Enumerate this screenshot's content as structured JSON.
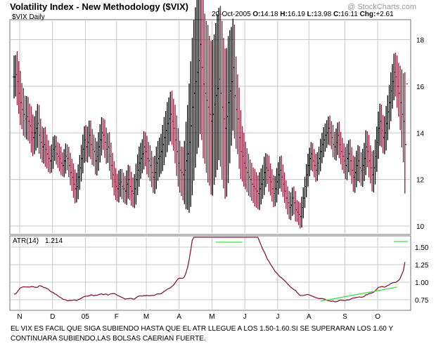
{
  "header": {
    "title": "Volatility Index - New Methodology ($VIX)",
    "watermark": "@ StockCharts.com",
    "date": "20-Oct-2005",
    "open_label": "O:",
    "open": "14.18",
    "high_label": "H:",
    "high": "16.19",
    "low_label": "L:",
    "low": "13.98",
    "close_label": "C:",
    "close": "16.11",
    "change_label": "Chg:",
    "change": "+2.61"
  },
  "caption": "EL VIX ES FACIL QUE SIGA SUBIENDO HASTA QUE EL ATR LLEGUE A LOS 1.50-1.60.SI SE SUPERARAN LOS 1.60 Y CONTINUARA SUBIENDO,LAS BOLSAS CAERIAN FUERTE.",
  "colors": {
    "up": "#000000",
    "down": "#8b1a3a",
    "trendline": "#44dd44",
    "grid": "#c8c8c8"
  },
  "chart_data": [
    {
      "type": "ohlc",
      "label": "$VIX Daily",
      "ylim": [
        9.7,
        18.8
      ],
      "yticks": [
        10,
        12,
        14,
        16,
        18
      ],
      "months": [
        "N",
        "D",
        "05",
        "F",
        "M",
        "A",
        "M",
        "J",
        "J",
        "A",
        "S",
        "O"
      ],
      "month_start_index": [
        0,
        21,
        42,
        62,
        81,
        102,
        123,
        144,
        165,
        185,
        208,
        229
      ],
      "close": [
        16.4,
        16.5,
        16.2,
        15.7,
        15.3,
        15.0,
        14.8,
        14.6,
        14.7,
        14.5,
        14.3,
        14.0,
        13.8,
        14.0,
        14.2,
        14.4,
        13.9,
        13.6,
        13.4,
        13.5,
        13.3,
        13.1,
        12.9,
        12.8,
        13.0,
        13.3,
        13.4,
        13.1,
        13.0,
        12.9,
        12.7,
        12.6,
        12.8,
        13.0,
        12.9,
        12.6,
        12.3,
        12.1,
        11.8,
        11.6,
        11.7,
        12.1,
        12.5,
        12.9,
        13.3,
        13.7,
        13.4,
        13.6,
        13.9,
        13.5,
        13.3,
        13.2,
        12.8,
        13.0,
        13.4,
        13.7,
        14.0,
        13.9,
        13.6,
        13.3,
        13.4,
        13.0,
        12.6,
        12.2,
        11.9,
        11.7,
        11.6,
        11.8,
        11.9,
        11.7,
        11.6,
        11.5,
        11.8,
        12.0,
        11.7,
        11.5,
        11.4,
        11.6,
        12.0,
        12.4,
        12.7,
        12.9,
        13.1,
        13.4,
        13.2,
        12.9,
        12.8,
        12.6,
        12.3,
        12.1,
        12.3,
        12.7,
        12.9,
        13.0,
        13.2,
        13.5,
        13.8,
        14.1,
        14.4,
        14.6,
        14.8,
        14.5,
        14.2,
        13.7,
        13.2,
        12.7,
        12.4,
        12.3,
        12.2,
        12.4,
        12.8,
        13.1,
        13.6,
        14.3,
        15.1,
        15.7,
        16.2,
        16.6,
        17.1,
        17.8,
        16.8,
        16.1,
        15.7,
        15.4,
        15.1,
        14.8,
        14.5,
        14.8,
        15.2,
        15.6,
        15.9,
        16.3,
        15.7,
        15.1,
        14.6,
        14.2,
        14.7,
        15.3,
        15.8,
        16.2,
        16.8,
        15.6,
        15.0,
        14.6,
        13.8,
        13.2,
        13.0,
        12.7,
        12.5,
        12.3,
        12.1,
        12.0,
        11.8,
        11.7,
        11.6,
        11.5,
        11.4,
        11.6,
        11.8,
        12.0,
        12.3,
        12.5,
        12.4,
        12.1,
        11.9,
        11.6,
        11.4,
        11.6,
        11.9,
        12.2,
        12.4,
        12.1,
        11.8,
        11.5,
        11.2,
        11.0,
        10.8,
        10.9,
        11.2,
        11.0,
        10.7,
        10.6,
        10.5,
        10.4,
        10.8,
        11.2,
        11.7,
        12.2,
        12.6,
        12.9,
        13.1,
        12.8,
        12.6,
        12.4,
        12.7,
        12.9,
        13.2,
        13.5,
        13.7,
        13.9,
        14.0,
        14.2,
        14.0,
        13.8,
        13.5,
        13.4,
        13.6,
        13.9,
        13.5,
        13.2,
        13.0,
        12.8,
        12.6,
        12.9,
        13.1,
        12.8,
        12.4,
        12.1,
        12.3,
        12.6,
        12.8,
        12.5,
        12.4,
        12.6,
        12.9,
        13.4,
        13.2,
        12.8,
        12.5,
        12.2,
        12.5,
        13.0,
        13.6,
        14.2,
        14.5,
        14.1,
        13.8,
        14.0,
        14.4,
        14.9,
        15.3,
        15.8,
        16.2,
        16.6,
        16.4,
        16.0,
        15.7,
        15.3,
        14.8,
        14.5,
        13.5,
        16.1
      ],
      "volatility": [
        0.22,
        0.2,
        0.24,
        0.21,
        0.23,
        0.2,
        0.22,
        0.19,
        0.21,
        0.2,
        0.18,
        0.2,
        0.19,
        0.17,
        0.18,
        0.2,
        0.19,
        0.17,
        0.16,
        0.17,
        0.18,
        0.15,
        0.14,
        0.13,
        0.12,
        0.13,
        0.12,
        0.11,
        0.12,
        0.13,
        0.12,
        0.11,
        0.12,
        0.13,
        0.12,
        0.12,
        0.13,
        0.14,
        0.14,
        0.15,
        0.14,
        0.13,
        0.13,
        0.14,
        0.15,
        0.14,
        0.15,
        0.16,
        0.15,
        0.15,
        0.16,
        0.15,
        0.14,
        0.15,
        0.15,
        0.16,
        0.16,
        0.15,
        0.16,
        0.15,
        0.14,
        0.15,
        0.14,
        0.13,
        0.14,
        0.14,
        0.13,
        0.14,
        0.13,
        0.13,
        0.14,
        0.13,
        0.14,
        0.15,
        0.14,
        0.15,
        0.14,
        0.15,
        0.16,
        0.16,
        0.17,
        0.16,
        0.15,
        0.16,
        0.15,
        0.16,
        0.17,
        0.16,
        0.15,
        0.16,
        0.17,
        0.17,
        0.18,
        0.19,
        0.18,
        0.2,
        0.21,
        0.2,
        0.22,
        0.22,
        0.23,
        0.24,
        0.23,
        0.24,
        0.25,
        0.24,
        0.23,
        0.24,
        0.26,
        0.3,
        0.4,
        0.5,
        0.6,
        0.66,
        0.71,
        0.75,
        0.76,
        0.74,
        0.77,
        0.75,
        0.74,
        0.76,
        0.72,
        0.74,
        0.77,
        0.73,
        0.75,
        0.76,
        0.72,
        0.74,
        0.76,
        0.73,
        0.75,
        0.74,
        0.71,
        0.72,
        0.7,
        0.68,
        0.62,
        0.56,
        0.5,
        0.44,
        0.4,
        0.36,
        0.32,
        0.28,
        0.26,
        0.24,
        0.22,
        0.2,
        0.19,
        0.18,
        0.17,
        0.17,
        0.18,
        0.17,
        0.16,
        0.17,
        0.16,
        0.15,
        0.16,
        0.15,
        0.14,
        0.15,
        0.14,
        0.13,
        0.14,
        0.13,
        0.14,
        0.13,
        0.14,
        0.15,
        0.13,
        0.12,
        0.11,
        0.12,
        0.12,
        0.13,
        0.11,
        0.12,
        0.12,
        0.1,
        0.11,
        0.12,
        0.11,
        0.11,
        0.1,
        0.11,
        0.12,
        0.11,
        0.12,
        0.11,
        0.12,
        0.12,
        0.11,
        0.12,
        0.13,
        0.12,
        0.13,
        0.12,
        0.13,
        0.12,
        0.13,
        0.12,
        0.13,
        0.13,
        0.14,
        0.13,
        0.14,
        0.13,
        0.14,
        0.13,
        0.14,
        0.15,
        0.14,
        0.15,
        0.14,
        0.15,
        0.16,
        0.15,
        0.16,
        0.15,
        0.16,
        0.17,
        0.16,
        0.17,
        0.16,
        0.17,
        0.16,
        0.17,
        0.18,
        0.17,
        0.16,
        0.17,
        0.18,
        0.17,
        0.16,
        0.17,
        0.18,
        0.17,
        0.18,
        0.19,
        0.18,
        0.19,
        0.2,
        0.22,
        0.24,
        0.28,
        0.34,
        0.42,
        0.5
      ],
      "atr_label": "ATR(14)",
      "atr_value": "1.214"
    },
    {
      "type": "line",
      "label": "ATR(14) 1.214",
      "ylim": [
        0.62,
        1.64
      ],
      "yticks": [
        "1.50",
        "1.25",
        "1.00",
        "0.75"
      ],
      "ytick_values": [
        1.5,
        1.25,
        1.0,
        0.75
      ],
      "annotations": [
        {
          "kind": "trendline",
          "from": {
            "index": 129,
            "value": 1.57
          },
          "to": {
            "index": 146,
            "value": 1.57
          }
        },
        {
          "kind": "trendline",
          "from": {
            "index": 196,
            "value": 0.73
          },
          "to": {
            "index": 245,
            "value": 0.93
          }
        },
        {
          "kind": "trendline",
          "from": {
            "index": 243,
            "value": 1.58
          },
          "to": {
            "index": 252,
            "value": 1.58
          }
        }
      ]
    }
  ]
}
